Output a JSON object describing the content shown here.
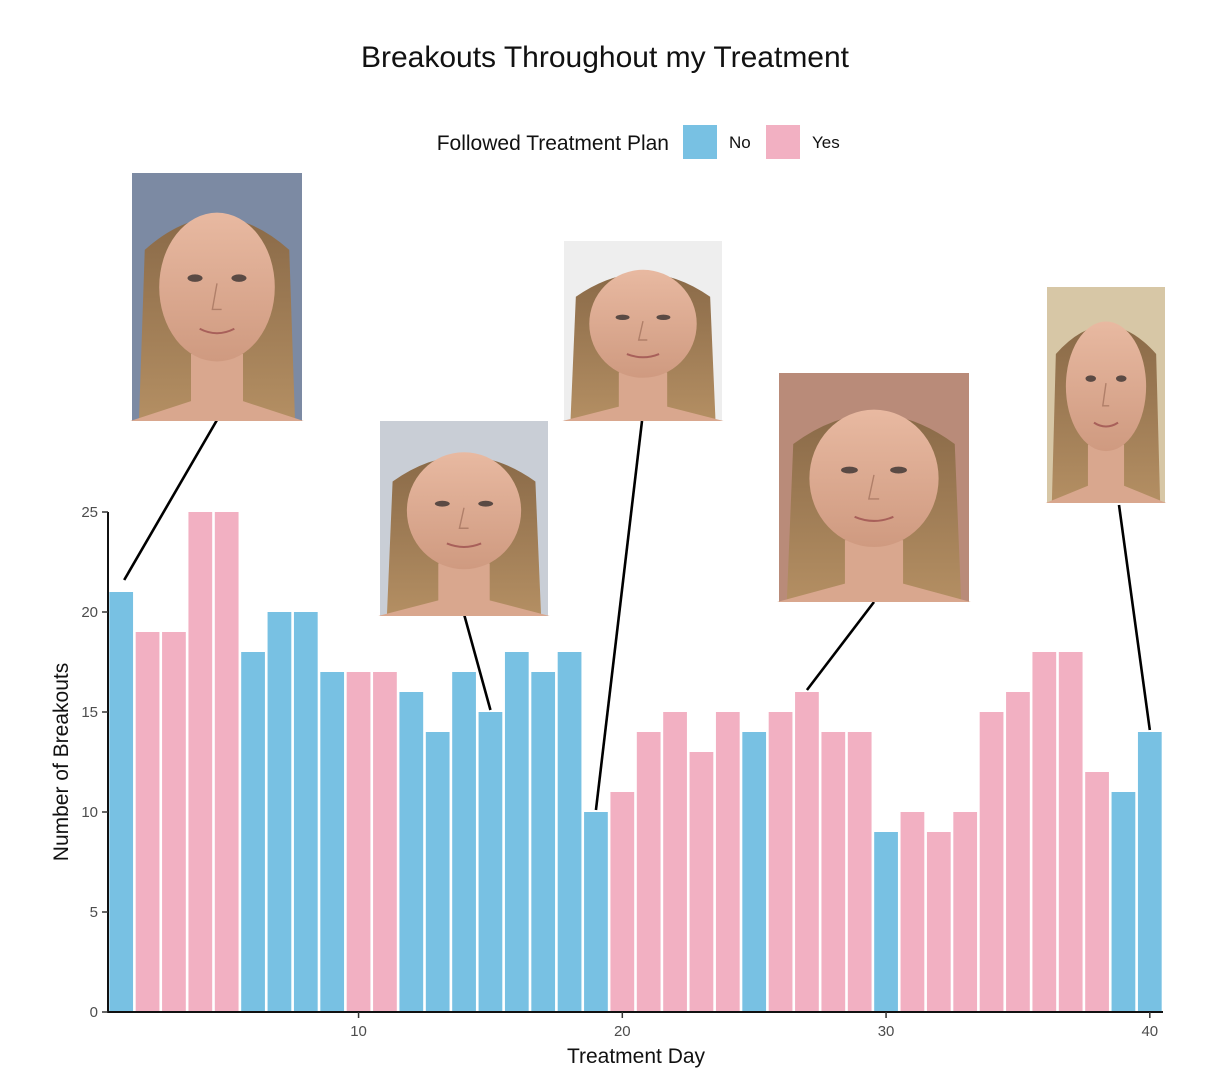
{
  "chart_data": {
    "type": "bar",
    "title": "Breakouts Throughout my Treatment",
    "xlabel": "Treatment Day",
    "ylabel": "Number of Breakouts",
    "xlim": [
      0.5,
      40.5
    ],
    "ylim": [
      0,
      25
    ],
    "x_ticks": [
      10,
      20,
      30,
      40
    ],
    "y_ticks": [
      0,
      5,
      10,
      15,
      20,
      25
    ],
    "grid": false,
    "legend": {
      "title": "Followed Treatment Plan",
      "placement": "top",
      "entries": [
        {
          "label": "No",
          "color": "#78C1E3"
        },
        {
          "label": "Yes",
          "color": "#F2B0C2"
        }
      ]
    },
    "x": [
      1,
      2,
      3,
      4,
      5,
      6,
      7,
      8,
      9,
      10,
      11,
      12,
      13,
      14,
      15,
      16,
      17,
      18,
      19,
      20,
      21,
      22,
      23,
      24,
      25,
      26,
      27,
      28,
      29,
      30,
      31,
      32,
      33,
      34,
      35,
      36,
      37,
      38,
      39,
      40
    ],
    "values": [
      21,
      19,
      19,
      25,
      25,
      18,
      20,
      20,
      17,
      17,
      17,
      16,
      14,
      17,
      15,
      18,
      17,
      18,
      10,
      11,
      14,
      15,
      13,
      15,
      14,
      15,
      16,
      14,
      14,
      9,
      10,
      9,
      10,
      15,
      16,
      18,
      18,
      12,
      11,
      14
    ],
    "followed": [
      "No",
      "Yes",
      "Yes",
      "Yes",
      "Yes",
      "No",
      "No",
      "No",
      "No",
      "Yes",
      "Yes",
      "No",
      "No",
      "No",
      "No",
      "No",
      "No",
      "No",
      "No",
      "Yes",
      "Yes",
      "Yes",
      "Yes",
      "Yes",
      "No",
      "Yes",
      "Yes",
      "Yes",
      "Yes",
      "No",
      "Yes",
      "Yes",
      "Yes",
      "Yes",
      "Yes",
      "Yes",
      "Yes",
      "Yes",
      "No",
      "No"
    ],
    "annotations": [
      {
        "type": "photo",
        "day": 1,
        "icon": "face-photo-icon"
      },
      {
        "type": "photo",
        "day": 15,
        "icon": "face-photo-icon"
      },
      {
        "type": "photo",
        "day": 19,
        "icon": "face-photo-icon"
      },
      {
        "type": "photo",
        "day": 27,
        "icon": "face-photo-icon"
      },
      {
        "type": "photo",
        "day": 40,
        "icon": "face-photo-icon"
      }
    ]
  }
}
